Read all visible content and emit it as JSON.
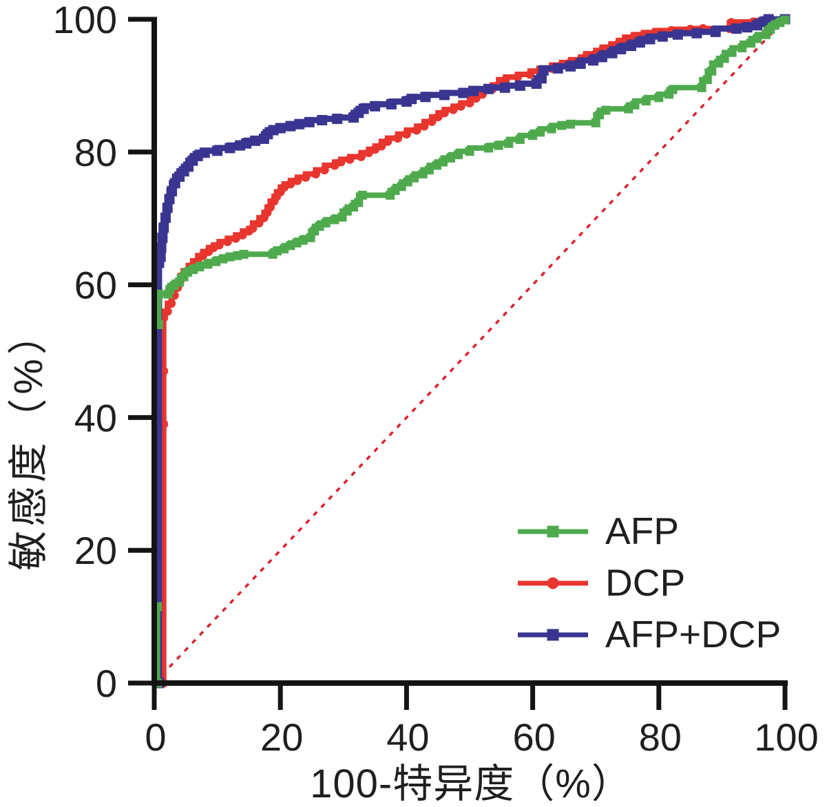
{
  "figure": {
    "background": "#ffffff",
    "text_color": "#1f1f1f",
    "axis_color": "#141414"
  },
  "chart_data": {
    "type": "line",
    "subtype": "roc-curves",
    "title": "",
    "xlabel": "100-特异度（%）",
    "ylabel": "敏感度（%）",
    "xlim": [
      0,
      100
    ],
    "ylim": [
      0,
      100
    ],
    "x_ticks": [
      0,
      20,
      40,
      60,
      80,
      100
    ],
    "y_ticks": [
      0,
      20,
      40,
      60,
      80,
      100
    ],
    "grid": false,
    "legend_position": "lower right",
    "reference_line": {
      "name": "chance-diagonal",
      "from": [
        0,
        0
      ],
      "to": [
        100,
        100
      ],
      "color": "#d8232e",
      "style": "dotted",
      "width": 3.5
    },
    "series": [
      {
        "name": "AFP",
        "color": "#4faa4e",
        "marker": "square",
        "marker_size": 13,
        "line_width": 8,
        "z": 3,
        "points": [
          [
            0.5,
            0
          ],
          [
            0.5,
            11.5
          ],
          null,
          [
            0.7,
            54
          ],
          [
            0.7,
            58.6
          ],
          [
            2.2,
            58.6
          ],
          [
            2.5,
            59.3
          ],
          [
            3.2,
            59.9
          ],
          [
            4,
            60.4
          ],
          [
            4.7,
            61.2
          ],
          [
            5.3,
            61.9
          ],
          [
            6.2,
            62.3
          ],
          [
            7.2,
            62.7
          ],
          [
            8.5,
            63.1
          ],
          [
            9.8,
            63.5
          ],
          [
            10.9,
            63.9
          ],
          [
            12,
            64.2
          ],
          [
            13.2,
            64.4
          ],
          [
            14.2,
            64.6
          ],
          [
            18.8,
            64.6
          ],
          [
            19.5,
            65.1
          ],
          [
            20.6,
            65.4
          ],
          [
            21.6,
            65.9
          ],
          [
            22.6,
            66.3
          ],
          [
            23.6,
            66.7
          ],
          [
            24.8,
            67.1
          ],
          [
            25.4,
            68.1
          ],
          [
            26.2,
            68.8
          ],
          [
            27.2,
            69.3
          ],
          [
            28.6,
            69.8
          ],
          [
            29.8,
            70.2
          ],
          [
            30.6,
            71.1
          ],
          [
            31.6,
            71.7
          ],
          [
            32.4,
            72.4
          ],
          [
            33,
            73.5
          ],
          [
            37.4,
            73.5
          ],
          [
            38.2,
            74.2
          ],
          [
            39.2,
            74.8
          ],
          [
            40.2,
            75.5
          ],
          [
            41.2,
            76.1
          ],
          [
            42.6,
            76.7
          ],
          [
            43.6,
            77.3
          ],
          [
            44.8,
            78
          ],
          [
            45.8,
            78.5
          ],
          [
            47,
            79.1
          ],
          [
            48.2,
            79.6
          ],
          [
            50,
            80.1
          ],
          [
            53,
            80.6
          ],
          [
            54.6,
            81
          ],
          [
            56.2,
            81.3
          ],
          [
            58,
            81.9
          ],
          [
            60,
            82.5
          ],
          [
            61.2,
            83
          ],
          [
            63,
            83.5
          ],
          [
            64.6,
            84
          ],
          [
            66,
            84.2
          ],
          [
            70,
            84.4
          ],
          [
            70.6,
            85.6
          ],
          [
            71.6,
            86.3
          ],
          [
            75.2,
            86.5
          ],
          [
            76.2,
            87.1
          ],
          [
            78,
            87.7
          ],
          [
            80,
            88.2
          ],
          [
            81.6,
            88.7
          ],
          [
            82.2,
            89.4
          ],
          [
            86.8,
            89.7
          ],
          [
            87.7,
            90.9
          ],
          [
            88.4,
            92.2
          ],
          [
            89.5,
            93.4
          ],
          [
            90.4,
            94.1
          ],
          [
            91.6,
            95
          ],
          [
            93.2,
            95.7
          ],
          [
            94.6,
            96.4
          ],
          [
            95.6,
            97.1
          ],
          [
            97,
            97.7
          ],
          [
            97.7,
            98.5
          ],
          [
            98.4,
            99.1
          ],
          [
            99.2,
            99.5
          ],
          [
            100,
            99.9
          ]
        ]
      },
      {
        "name": "DCP",
        "color": "#e8352e",
        "marker": "circle",
        "marker_size": 13,
        "line_width": 8,
        "z": 1,
        "points": [
          [
            1.5,
            0
          ],
          [
            1.5,
            39
          ],
          [
            1.5,
            47
          ],
          [
            1.5,
            55
          ],
          [
            2.1,
            56
          ],
          [
            2.7,
            57.2
          ],
          [
            3.2,
            58.4
          ],
          [
            3.7,
            59.6
          ],
          [
            4.1,
            60.6
          ],
          [
            4.6,
            61.4
          ],
          [
            5.4,
            62.1
          ],
          [
            6.1,
            62.9
          ],
          [
            6.9,
            63.6
          ],
          [
            7.7,
            64.4
          ],
          [
            8.6,
            65
          ],
          [
            9.4,
            65.6
          ],
          [
            10.3,
            66
          ],
          [
            11.6,
            66.5
          ],
          [
            12.9,
            67
          ],
          [
            14,
            67.5
          ],
          [
            15,
            68.1
          ],
          [
            15.6,
            68.5
          ],
          [
            16.6,
            69.3
          ],
          [
            17.4,
            70.1
          ],
          [
            17.9,
            70.9
          ],
          [
            18.4,
            71.7
          ],
          [
            19,
            72.6
          ],
          [
            19.4,
            73.3
          ],
          [
            20,
            74
          ],
          [
            20.6,
            74.7
          ],
          [
            21.6,
            75.2
          ],
          [
            22.7,
            75.7
          ],
          [
            24,
            76.2
          ],
          [
            25.6,
            76.7
          ],
          [
            27,
            77.3
          ],
          [
            28.6,
            78
          ],
          [
            29.6,
            78.5
          ],
          [
            31,
            78.9
          ],
          [
            32.8,
            79.3
          ],
          [
            34,
            79.9
          ],
          [
            35,
            80.4
          ],
          [
            36,
            80.9
          ],
          [
            37,
            81.6
          ],
          [
            38.6,
            82.1
          ],
          [
            40,
            82.7
          ],
          [
            41.6,
            83.3
          ],
          [
            42.8,
            83.9
          ],
          [
            44,
            84.6
          ],
          [
            45,
            85.3
          ],
          [
            46,
            85.9
          ],
          [
            47.4,
            86.4
          ],
          [
            48.6,
            86.9
          ],
          [
            50,
            87.4
          ],
          [
            51,
            88.1
          ],
          [
            52,
            88.7
          ],
          [
            53.6,
            89.5
          ],
          [
            54.6,
            90.1
          ],
          [
            55.7,
            90.9
          ],
          [
            57.6,
            91.3
          ],
          [
            59.6,
            91.7
          ],
          [
            61,
            92.2
          ],
          [
            63,
            92.6
          ],
          [
            64.6,
            93.1
          ],
          [
            66,
            93.5
          ],
          [
            67.6,
            93.9
          ],
          [
            68.4,
            94.3
          ],
          [
            70,
            94.8
          ],
          [
            71,
            95.3
          ],
          [
            72.4,
            95.8
          ],
          [
            73.6,
            96.3
          ],
          [
            74.6,
            96.8
          ],
          [
            76,
            97.3
          ],
          [
            77.6,
            97.7
          ],
          [
            79.4,
            98
          ],
          [
            82,
            98.3
          ],
          [
            85,
            98.5
          ],
          [
            87,
            98.6
          ],
          [
            91.2,
            98.6
          ],
          [
            91.5,
            99.5
          ],
          [
            95,
            99.6
          ],
          [
            97,
            99.8
          ],
          [
            100,
            100
          ]
        ]
      },
      {
        "name": "AFP+DCP",
        "color": "#3a3590",
        "marker": "square",
        "marker_size": 15,
        "line_width": 9,
        "z": 2,
        "points": [
          [
            0.75,
            0
          ],
          [
            0.75,
            63.3
          ],
          [
            1,
            64.2
          ],
          [
            1.1,
            65.6
          ],
          [
            1.3,
            67.1
          ],
          [
            1.5,
            68.6
          ],
          [
            1.8,
            70.1
          ],
          [
            2.1,
            71.6
          ],
          [
            2.4,
            72.9
          ],
          [
            2.8,
            74.1
          ],
          [
            3.3,
            75.3
          ],
          [
            4,
            76.3
          ],
          [
            4.7,
            77.1
          ],
          [
            5.4,
            77.8
          ],
          [
            6.1,
            78.7
          ],
          [
            6.9,
            79.4
          ],
          [
            8,
            79.9
          ],
          [
            10,
            80.2
          ],
          [
            12,
            80.6
          ],
          [
            13.6,
            81
          ],
          [
            14.6,
            81.3
          ],
          [
            16,
            81.7
          ],
          [
            17.4,
            82
          ],
          [
            18,
            82.7
          ],
          [
            18.9,
            83.3
          ],
          [
            20,
            83.6
          ],
          [
            21.6,
            83.9
          ],
          [
            23,
            84.2
          ],
          [
            24.6,
            84.5
          ],
          [
            26.6,
            84.8
          ],
          [
            29,
            85
          ],
          [
            31.6,
            85.2
          ],
          [
            32.4,
            85.9
          ],
          [
            33.2,
            86.5
          ],
          [
            35,
            86.9
          ],
          [
            37.6,
            87.2
          ],
          [
            40,
            87.6
          ],
          [
            40.8,
            88
          ],
          [
            43,
            88.3
          ],
          [
            46,
            88.6
          ],
          [
            49,
            88.9
          ],
          [
            50.6,
            89.2
          ],
          [
            53,
            89.5
          ],
          [
            55.6,
            89.7
          ],
          [
            58,
            90
          ],
          [
            60.6,
            90.3
          ],
          [
            61.4,
            91.1
          ],
          [
            61.7,
            92.3
          ],
          [
            64,
            92.6
          ],
          [
            66,
            92.9
          ],
          [
            67.6,
            93.3
          ],
          [
            69.6,
            93.8
          ],
          [
            71,
            94.3
          ],
          [
            72.6,
            94.9
          ],
          [
            74,
            95.5
          ],
          [
            75.6,
            96
          ],
          [
            77,
            96.5
          ],
          [
            78.6,
            97
          ],
          [
            80.6,
            97.4
          ],
          [
            83,
            97.7
          ],
          [
            86,
            97.9
          ],
          [
            89,
            98.1
          ],
          [
            92.3,
            98.6
          ],
          [
            94,
            98.8
          ],
          [
            95.6,
            99.1
          ],
          [
            96.6,
            99.6
          ],
          [
            97.4,
            100
          ],
          [
            100,
            100
          ]
        ]
      }
    ]
  }
}
